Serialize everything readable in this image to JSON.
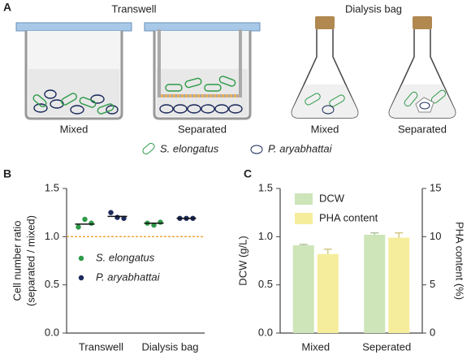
{
  "figure": {
    "panel": "A",
    "groups": [
      "Transwell",
      "Dialysis bag"
    ],
    "conditions": [
      "Mixed",
      "Separated",
      "Mixed",
      "Separated"
    ],
    "legend": [
      "S. elongatus",
      "P. aryabhattai"
    ]
  },
  "chart_data": [
    {
      "type": "dot",
      "panel": "B",
      "categories": [
        "Transwell",
        "Dialysis bag"
      ],
      "ylabel": [
        "Cell number ratio",
        "(separated / mixed)"
      ],
      "ylim": [
        0,
        1.5
      ],
      "yticks": [
        {
          "value": 0,
          "label": "0.0"
        },
        0.5,
        {
          "value": 1,
          "label": "1.0"
        },
        1.5
      ],
      "reference_line": 1,
      "reference_color": "#f0a030",
      "series": [
        {
          "name": "S. elongatus",
          "color": "#2e9a48",
          "values": [
            [
              1.1,
              1.18,
              1.14
            ],
            [
              1.14,
              1.12,
              1.15
            ]
          ],
          "means": [
            1.13,
            1.14
          ]
        },
        {
          "name": "P. aryabhattai",
          "color": "#1c2a5c",
          "values": [
            [
              1.25,
              1.2,
              1.19
            ],
            [
              1.19,
              1.19,
              1.19
            ]
          ],
          "means": [
            1.21,
            1.19
          ]
        }
      ]
    },
    {
      "type": "bar",
      "panel": "C",
      "categories": [
        "Mixed",
        "Seperated"
      ],
      "ylabel": "DCW  (g/L)",
      "y2label": "PHA content (%)",
      "ylim": [
        0,
        1.5
      ],
      "yticks": [
        {
          "value": 0,
          "label": "0.0"
        },
        0.5,
        {
          "value": 1,
          "label": "1.0"
        },
        1.5
      ],
      "y2lim": [
        0,
        15
      ],
      "y2ticks": [
        0,
        5,
        10,
        15
      ],
      "series": [
        {
          "name": "DCW",
          "color": "#cde5b8",
          "values": [
            0.91,
            1.02
          ],
          "errors": [
            0.01,
            0.02
          ]
        },
        {
          "name": "PHA content",
          "color": "#f6ed9c",
          "axis": "y2",
          "values": [
            8.2,
            9.9
          ],
          "errors": [
            0.5,
            0.5
          ]
        }
      ]
    }
  ]
}
